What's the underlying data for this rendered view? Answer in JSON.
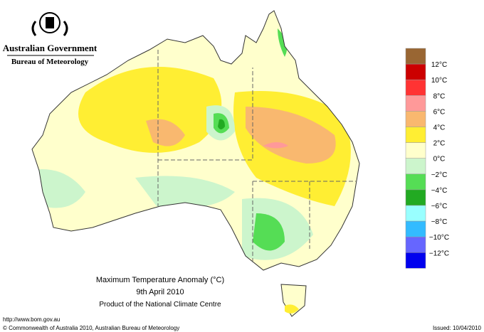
{
  "header": {
    "agency": "Australian Government",
    "bureau": "Bureau of Meteorology"
  },
  "legend": {
    "labels": [
      "12°C",
      "10°C",
      "8°C",
      "6°C",
      "4°C",
      "2°C",
      "0°C",
      "−2°C",
      "−4°C",
      "−6°C",
      "−8°C",
      "−10°C",
      "−12°C"
    ],
    "colors": [
      "#996633",
      "#cc0000",
      "#ff3333",
      "#ff9999",
      "#f9b86f",
      "#ffee33",
      "#ffffcc",
      "#ccf5cc",
      "#55dd55",
      "#22aa22",
      "#99ffff",
      "#33bbff",
      "#6666ff",
      "#0000ee"
    ]
  },
  "caption": {
    "title": "Maximum Temperature Anomaly (°C)",
    "date": "9th April 2010",
    "source": "Product of the National Climate Centre"
  },
  "footer": {
    "url": "http://www.bom.gov.au",
    "copyright": "© Commonwealth of Australia 2010, Australian Bureau of Meteorology",
    "issued": "Issued: 10/04/2010"
  }
}
